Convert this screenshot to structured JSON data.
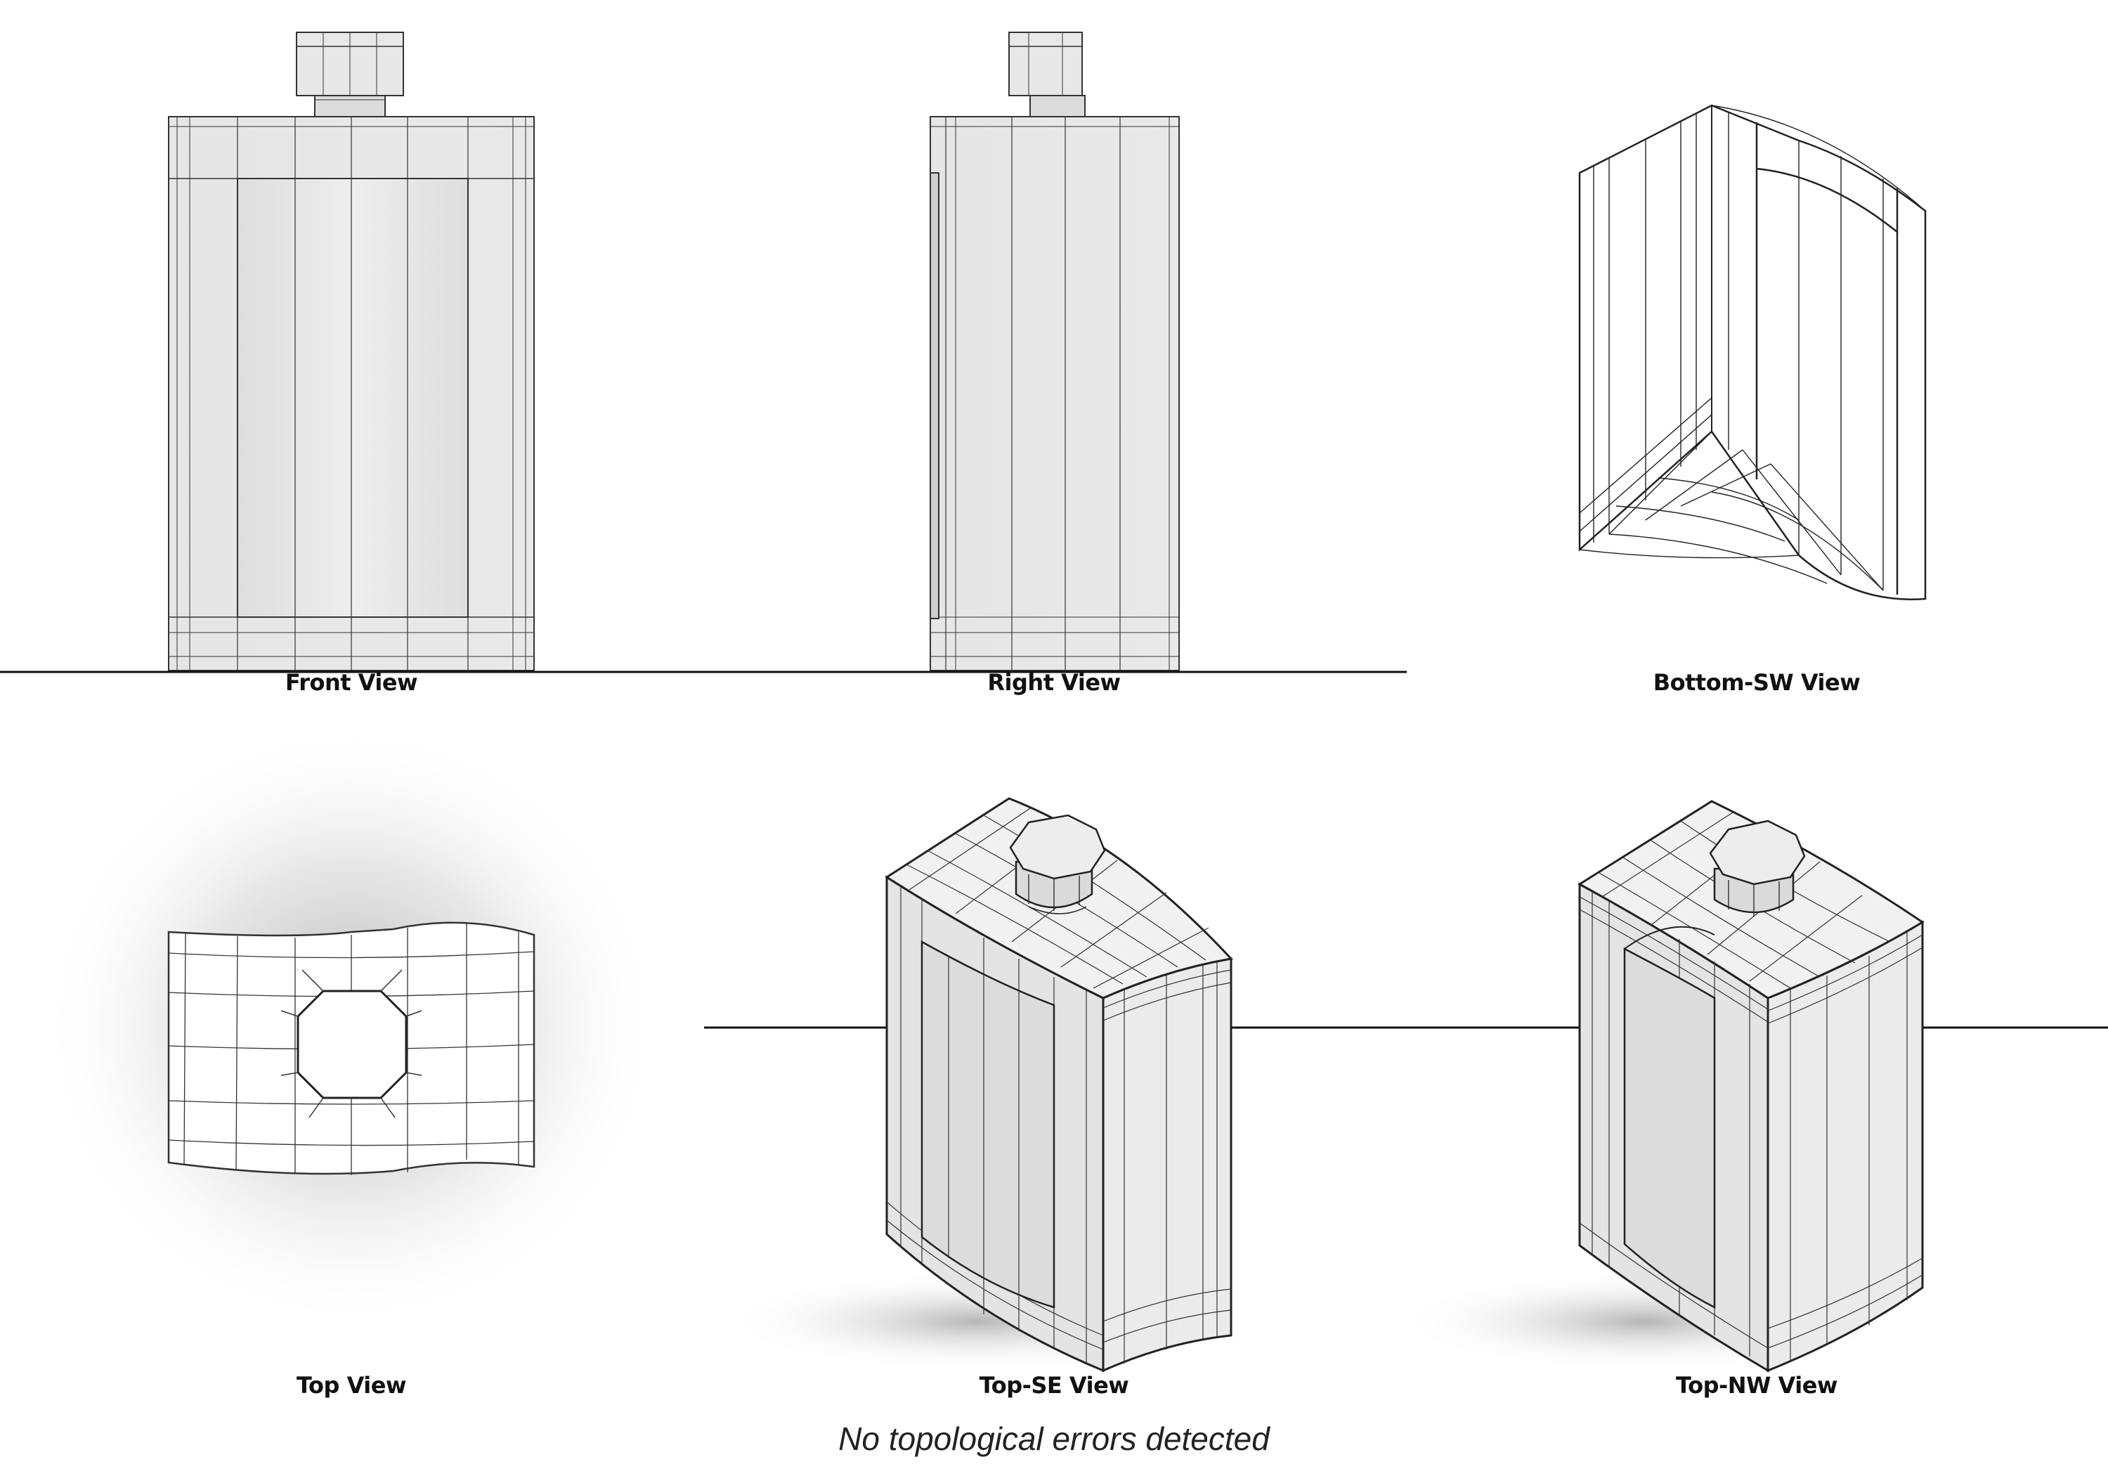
{
  "views": {
    "front": "Front View",
    "right": "Right View",
    "bottom_sw": "Bottom-SW View",
    "top": "Top View",
    "top_se": "Top-SE View",
    "top_nw": "Top-NW View"
  },
  "status_message": "No topological errors detected"
}
